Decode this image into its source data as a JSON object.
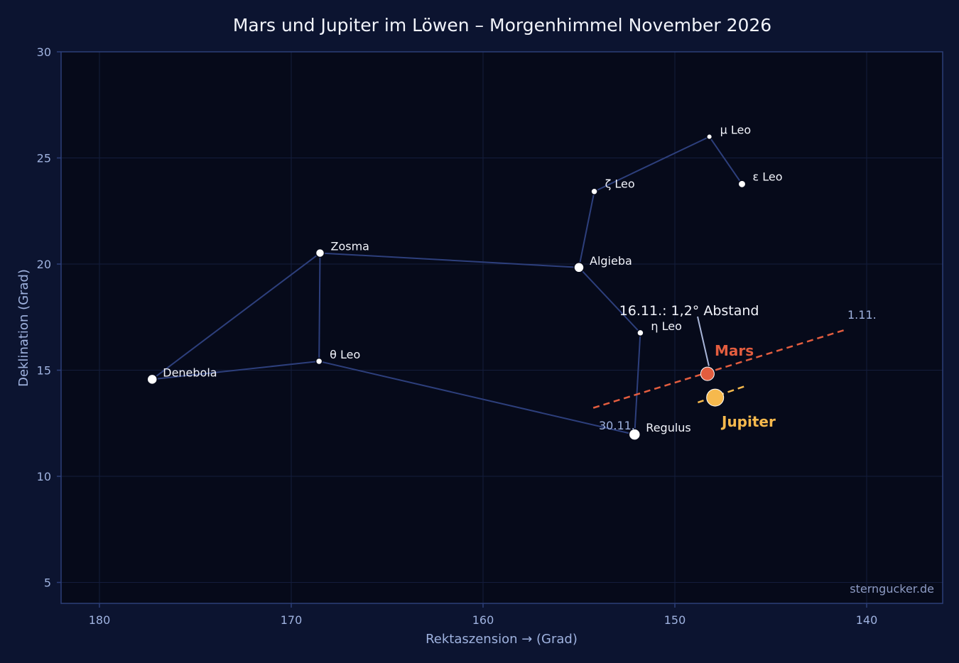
{
  "chart_data": {
    "type": "scatter",
    "title": "Mars und Jupiter im Löwen – Morgenhimmel November 2026",
    "xlabel": "Rektaszension →  (Grad)",
    "ylabel": "Deklination (Grad)",
    "xlim": [
      182,
      136
    ],
    "ylim": [
      4,
      30
    ],
    "x_inverted": true,
    "xticks": [
      180,
      170,
      160,
      150,
      140
    ],
    "yticks": [
      5,
      10,
      15,
      20,
      25,
      30
    ],
    "grid": true,
    "colors": {
      "background": "#0c1430",
      "plot_background": "#060a1a",
      "frame": "#2c3e78",
      "grid": "#141d3c",
      "constellation_lines": "#2d3f7c",
      "star": "#ffffff",
      "mars": "#e35d3f",
      "jupiter": "#f6b94d",
      "annotation_line": "#a8b5d8"
    },
    "stars": [
      {
        "name": "Regulus",
        "ra": 152.1,
        "dec": 11.97,
        "size": 8
      },
      {
        "name": "η Leo",
        "ra": 151.8,
        "dec": 16.76,
        "size": 4.5
      },
      {
        "name": "Algieba",
        "ra": 155.0,
        "dec": 19.84,
        "size": 7
      },
      {
        "name": "ζ Leo",
        "ra": 154.2,
        "dec": 23.42,
        "size": 4.5
      },
      {
        "name": "μ Leo",
        "ra": 148.2,
        "dec": 26.0,
        "size": 3.8
      },
      {
        "name": "ε Leo",
        "ra": 146.5,
        "dec": 23.77,
        "size": 5.2
      },
      {
        "name": "Zosma",
        "ra": 168.5,
        "dec": 20.52,
        "size": 6
      },
      {
        "name": "θ Leo",
        "ra": 168.55,
        "dec": 15.42,
        "size": 4.5
      },
      {
        "name": "Denebola",
        "ra": 177.25,
        "dec": 14.57,
        "size": 7
      }
    ],
    "constellation_lines": [
      [
        "Regulus",
        "η Leo"
      ],
      [
        "η Leo",
        "Algieba"
      ],
      [
        "Algieba",
        "ζ Leo"
      ],
      [
        "ζ Leo",
        "μ Leo"
      ],
      [
        "μ Leo",
        "ε Leo"
      ],
      [
        "Algieba",
        "Zosma"
      ],
      [
        "Zosma",
        "θ Leo"
      ],
      [
        "Zosma",
        "Denebola"
      ],
      [
        "Denebola",
        "θ Leo"
      ],
      [
        "θ Leo",
        "Regulus"
      ]
    ],
    "series": [
      {
        "name": "Mars",
        "track": [
          [
            141.2,
            16.88
          ],
          [
            154.3,
            13.21
          ]
        ],
        "position": [
          148.3,
          14.83
        ]
      },
      {
        "name": "Jupiter",
        "track": [
          [
            146.4,
            14.23
          ],
          [
            148.8,
            13.48
          ]
        ],
        "position": [
          147.9,
          13.71
        ]
      }
    ],
    "track_dates": {
      "start": "1.11.",
      "end": "30.11."
    },
    "annotation": {
      "text": "16.11.: 1,2° Abstand",
      "point_ra": 148.3,
      "point_dec": 14.83,
      "label_ra": 152.9,
      "label_dec": 17.82
    },
    "credit": "sterngucker.de"
  }
}
